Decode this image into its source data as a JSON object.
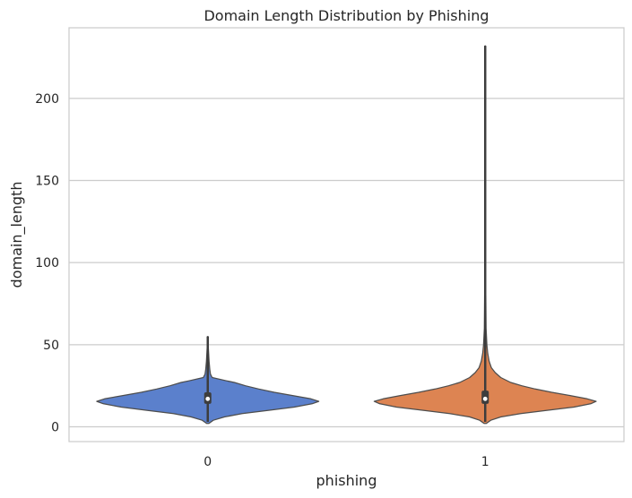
{
  "chart_data": {
    "type": "violin",
    "title": "Domain Length Distribution by Phishing",
    "xlabel": "phishing",
    "ylabel": "domain_length",
    "categories": [
      "0",
      "1"
    ],
    "ylim": [
      -9,
      243
    ],
    "yticks": [
      0,
      50,
      100,
      150,
      200
    ],
    "grid": true,
    "legend": "none",
    "series": [
      {
        "category": "0",
        "color": "#5b80cc",
        "min": 3,
        "max": 55,
        "q1": 14,
        "median": 17,
        "q3": 21,
        "whisker_low": 4,
        "whisker_high": 28,
        "density": [
          [
            2,
            0.01
          ],
          [
            4,
            0.05
          ],
          [
            6,
            0.15
          ],
          [
            8,
            0.31
          ],
          [
            10,
            0.54
          ],
          [
            12,
            0.78
          ],
          [
            14,
            0.94
          ],
          [
            15.5,
            1.0
          ],
          [
            17,
            0.93
          ],
          [
            19,
            0.77
          ],
          [
            21,
            0.6
          ],
          [
            23,
            0.46
          ],
          [
            25,
            0.34
          ],
          [
            27,
            0.24
          ],
          [
            28,
            0.17
          ],
          [
            30,
            0.04
          ],
          [
            32,
            0.025
          ],
          [
            35,
            0.018
          ],
          [
            40,
            0.012
          ],
          [
            45,
            0.008
          ],
          [
            50,
            0.004
          ],
          [
            55,
            0.002
          ]
        ]
      },
      {
        "category": "1",
        "color": "#dd8452",
        "min": 3,
        "max": 232,
        "q1": 14,
        "median": 17,
        "q3": 22,
        "whisker_low": 4,
        "whisker_high": 33,
        "density": [
          [
            2,
            0.01
          ],
          [
            4,
            0.05
          ],
          [
            6,
            0.14
          ],
          [
            8,
            0.32
          ],
          [
            10,
            0.55
          ],
          [
            12,
            0.8
          ],
          [
            14,
            0.95
          ],
          [
            15.5,
            1.0
          ],
          [
            17,
            0.92
          ],
          [
            19,
            0.77
          ],
          [
            21,
            0.6
          ],
          [
            23,
            0.45
          ],
          [
            25,
            0.33
          ],
          [
            27,
            0.23
          ],
          [
            30,
            0.14
          ],
          [
            33,
            0.09
          ],
          [
            36,
            0.055
          ],
          [
            40,
            0.035
          ],
          [
            45,
            0.022
          ],
          [
            50,
            0.015
          ],
          [
            60,
            0.008
          ],
          [
            80,
            0.005
          ],
          [
            120,
            0.004
          ],
          [
            160,
            0.003
          ],
          [
            200,
            0.003
          ],
          [
            232,
            0.002
          ]
        ]
      }
    ]
  }
}
